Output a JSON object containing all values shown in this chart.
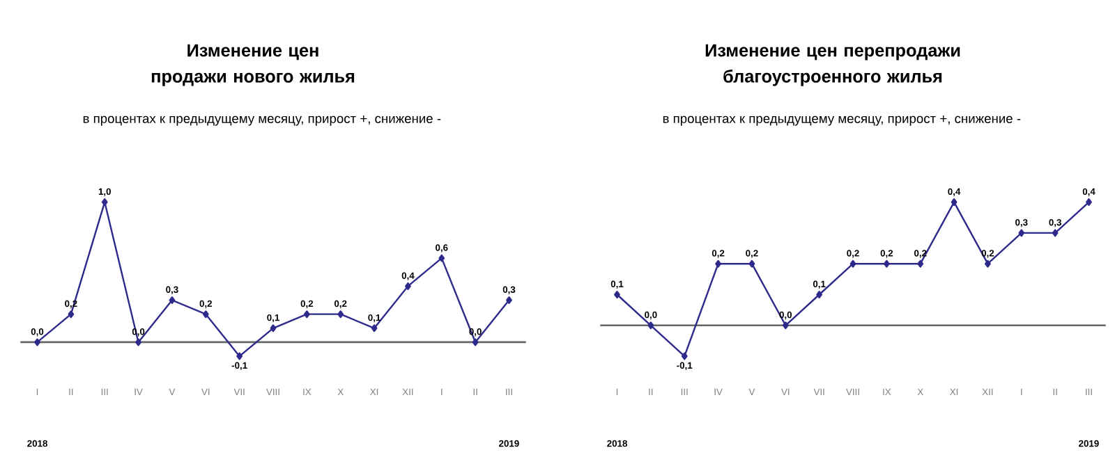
{
  "chart_data": [
    {
      "type": "line",
      "title": "Изменение цен продажи нового жилья",
      "subtitle": "в процентах к предыдущему месяцу, прирост +, снижение -",
      "categories": [
        "I",
        "II",
        "III",
        "IV",
        "V",
        "VI",
        "VII",
        "VIII",
        "IX",
        "X",
        "XI",
        "XII",
        "I",
        "II",
        "III"
      ],
      "series": [
        {
          "color": "#2e2a8c",
          "values": [
            0.0,
            0.2,
            1.0,
            0.0,
            0.3,
            0.2,
            -0.1,
            0.1,
            0.2,
            0.2,
            0.1,
            0.4,
            0.6,
            0.0,
            0.3
          ],
          "value_labels": [
            "0,0",
            "0,2",
            "1,0",
            "0,0",
            "0,3",
            "0,2",
            "-0,1",
            "0,1",
            "0,2",
            "0,2",
            "0,1",
            "0,4",
            "0,6",
            "0,0",
            "0,3"
          ]
        }
      ],
      "marker": "diamond",
      "annotations": [
        "2018",
        "2019"
      ]
    },
    {
      "type": "line",
      "title": "Изменение цен перепродажи благоустроенного жилья",
      "subtitle": "в процентах к предыдущему месяцу, прирост +, снижение -",
      "categories": [
        "I",
        "II",
        "III",
        "IV",
        "V",
        "VI",
        "VII",
        "VIII",
        "IX",
        "X",
        "XI",
        "XII",
        "I",
        "II",
        "III"
      ],
      "series": [
        {
          "color": "#2e2a8c",
          "values": [
            0.1,
            0.0,
            -0.1,
            0.2,
            0.2,
            0.0,
            0.1,
            0.2,
            0.2,
            0.2,
            0.4,
            0.2,
            0.3,
            0.3,
            0.4
          ],
          "value_labels": [
            "0,1",
            "0,0",
            "-0,1",
            "0,2",
            "0,2",
            "0,0",
            "0,1",
            "0,2",
            "0,2",
            "0,2",
            "0,4",
            "0,2",
            "0,3",
            "0,3",
            "0,4"
          ]
        }
      ],
      "marker": "diamond",
      "annotations": [
        "2018",
        "2019"
      ]
    }
  ]
}
